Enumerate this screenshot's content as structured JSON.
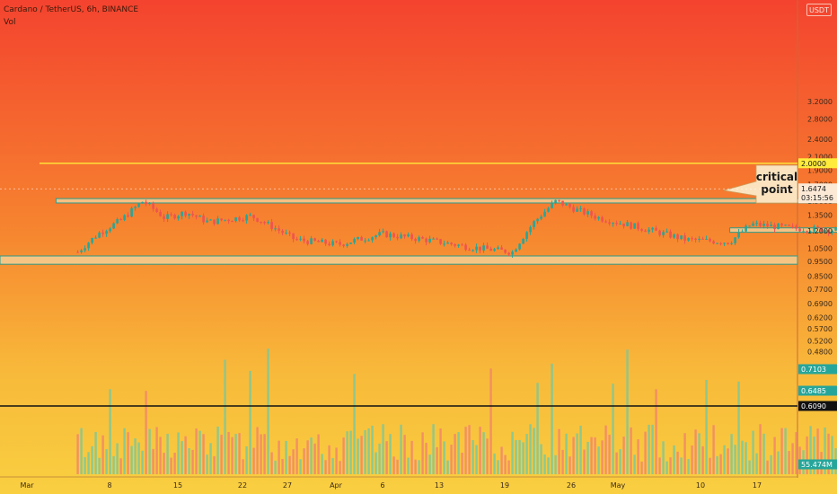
{
  "header": {
    "symbol_line": "Cardano / TetherUS, 6h, BINANCE",
    "volume_label": "Vol"
  },
  "currency_badge": "USDT",
  "callout": {
    "line1": "critical",
    "line2": "point"
  },
  "price_labels": {
    "level_2": "2.0000",
    "current": "1.6474",
    "countdown": "03:15:56",
    "vol_ma": "0.7103",
    "vol_level_1": "0.6485",
    "vol_level_2": "0.6090",
    "volume": "55.474M"
  },
  "colors": {
    "gradient_top": "#f44a30",
    "gradient_bottom": "#f8c83a",
    "up": "#26a69a",
    "down": "#ef5350",
    "zone_fill": "#f6d7a0",
    "zone_stroke": "#2e9c8c",
    "yellow_line": "#ffeb3b",
    "vol_label_green": "#26a69a",
    "vol_label_black": "#111111"
  },
  "chart_data": {
    "type": "candlestick",
    "title": "Cardano / TetherUS, 6h, BINANCE",
    "y_scale": "log",
    "price_axis": {
      "ticks": [
        "3.2000",
        "2.8000",
        "2.4000",
        "2.1000",
        "1.9000",
        "1.7000",
        "1.5000",
        "1.3500",
        "1.2000",
        "1.0500",
        "0.9500",
        "0.8500",
        "0.7700",
        "0.6900",
        "0.6200",
        "0.5700",
        "0.5200",
        "0.4800"
      ]
    },
    "x_axis": {
      "ticks": [
        "Mar",
        "8",
        "15",
        "22",
        "27",
        "Apr",
        "6",
        "13",
        "19",
        "26",
        "May",
        "10",
        "17"
      ]
    },
    "price_path": [
      [
        "Feb 24",
        1.02
      ],
      [
        "Feb 25",
        1.18
      ],
      [
        "Feb 26",
        1.3
      ],
      [
        "Feb 27",
        1.5
      ],
      [
        "Feb 28",
        1.32
      ],
      [
        "Mar 1",
        1.38
      ],
      [
        "Mar 2",
        1.28
      ],
      [
        "Mar 4",
        1.34
      ],
      [
        "Mar 6",
        1.12
      ],
      [
        "Mar 8",
        1.08
      ],
      [
        "Mar 10",
        1.17
      ],
      [
        "Mar 12",
        1.12
      ],
      [
        "Mar 14",
        1.06
      ],
      [
        "Mar 16",
        1.02
      ],
      [
        "Mar 17",
        1.28
      ],
      [
        "Mar 18",
        1.5
      ],
      [
        "Mar 19",
        1.4
      ],
      [
        "Mar 20",
        1.32
      ],
      [
        "Mar 22",
        1.22
      ],
      [
        "Mar 24",
        1.12
      ],
      [
        "Mar 26",
        1.1
      ],
      [
        "Mar 27",
        1.26
      ],
      [
        "Mar 29",
        1.22
      ],
      [
        "Apr 1",
        1.2
      ],
      [
        "Apr 4",
        1.19
      ],
      [
        "Apr 6",
        1.22
      ],
      [
        "Apr 8",
        1.21
      ],
      [
        "Apr 10",
        1.25
      ],
      [
        "Apr 12",
        1.4
      ],
      [
        "Apr 14",
        1.52
      ],
      [
        "Apr 16",
        1.44
      ],
      [
        "Apr 18",
        1.1
      ],
      [
        "Apr 19",
        1.3
      ],
      [
        "Apr 21",
        1.2
      ],
      [
        "Apr 23",
        1.1
      ],
      [
        "Apr 24",
        1.0
      ],
      [
        "Apr 25",
        1.05
      ],
      [
        "Apr 26",
        1.15
      ],
      [
        "Apr 28",
        1.3
      ],
      [
        "Apr 30",
        1.35
      ],
      [
        "May 2",
        1.38
      ],
      [
        "May 4",
        1.36
      ],
      [
        "May 6",
        1.35
      ],
      [
        "May 7",
        1.55
      ],
      [
        "May 8",
        1.72
      ],
      [
        "May 9",
        1.75
      ],
      [
        "May 10",
        1.78
      ],
      [
        "May 11",
        1.69
      ],
      [
        "May 12",
        1.55
      ]
    ],
    "last_price": 1.6474,
    "annotations": [
      {
        "type": "horizontal_line",
        "price": 2.0,
        "color": "#ffeb3b"
      },
      {
        "type": "zone",
        "from": "Feb 23",
        "to": "May 12",
        "low": 1.48,
        "high": 1.53
      },
      {
        "type": "zone",
        "from": "Mar 26",
        "to": "May 15",
        "low": 1.185,
        "high": 1.225
      },
      {
        "type": "zone",
        "from": "Feb 21",
        "to": "May 28",
        "low": 0.93,
        "high": 0.99
      },
      {
        "type": "zone",
        "from": "May 8",
        "to": "May 11",
        "low": 1.71,
        "high": 1.75
      },
      {
        "type": "trendline",
        "from": [
          "Apr 24",
          0.93
        ],
        "to": [
          "May 13",
          1.6
        ]
      },
      {
        "type": "arrow",
        "from": [
          "May 12",
          1.55
        ],
        "to": [
          "May 14",
          2.0
        ]
      },
      {
        "type": "arrow",
        "from": [
          "May 12",
          1.5
        ],
        "to": [
          "May 14",
          1.2
        ]
      },
      {
        "type": "callout",
        "text": "critical point"
      }
    ],
    "volume": {
      "unit": "M",
      "last": 55.474,
      "levels": [
        0.7103,
        0.6485,
        0.609
      ]
    }
  }
}
